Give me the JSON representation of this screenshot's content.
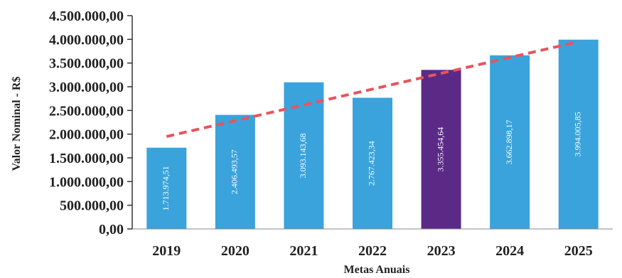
{
  "chart_data": {
    "type": "bar",
    "title": "",
    "xlabel": "Metas Anuais",
    "ylabel": "Valor Nominal - R$",
    "categories": [
      "2019",
      "2020",
      "2021",
      "2022",
      "2023",
      "2024",
      "2025"
    ],
    "values": [
      1713974.51,
      2406493.57,
      3093143.68,
      2767423.34,
      3355454.64,
      3662898.17,
      3994005.85
    ],
    "data_labels": [
      "1.713.974,51",
      "2.406.493,57",
      "3.093.143,68",
      "2.767.423,34",
      "3.355.454,64",
      "3.662.898,17",
      "3.994.005,85"
    ],
    "yticks": [
      0,
      500000,
      1000000,
      1500000,
      2000000,
      2500000,
      3000000,
      3500000,
      4000000,
      4500000
    ],
    "ytick_labels": [
      "0,00",
      "500.000,00",
      "1.000.000,00",
      "1.500.000,00",
      "2.000.000,00",
      "2.500.000,00",
      "3.000.000,00",
      "3.500.000,00",
      "4.000.000,00",
      "4.500.000,00"
    ],
    "ylim": [
      0,
      4500000
    ],
    "trendline": {
      "style": "dashed",
      "color": "#e8545e",
      "start": 1950000,
      "end": 3950000
    },
    "bar_color": "#3aa3dc",
    "highlight_color": "#5b2a86",
    "highlight_index": 4,
    "grid": false
  }
}
